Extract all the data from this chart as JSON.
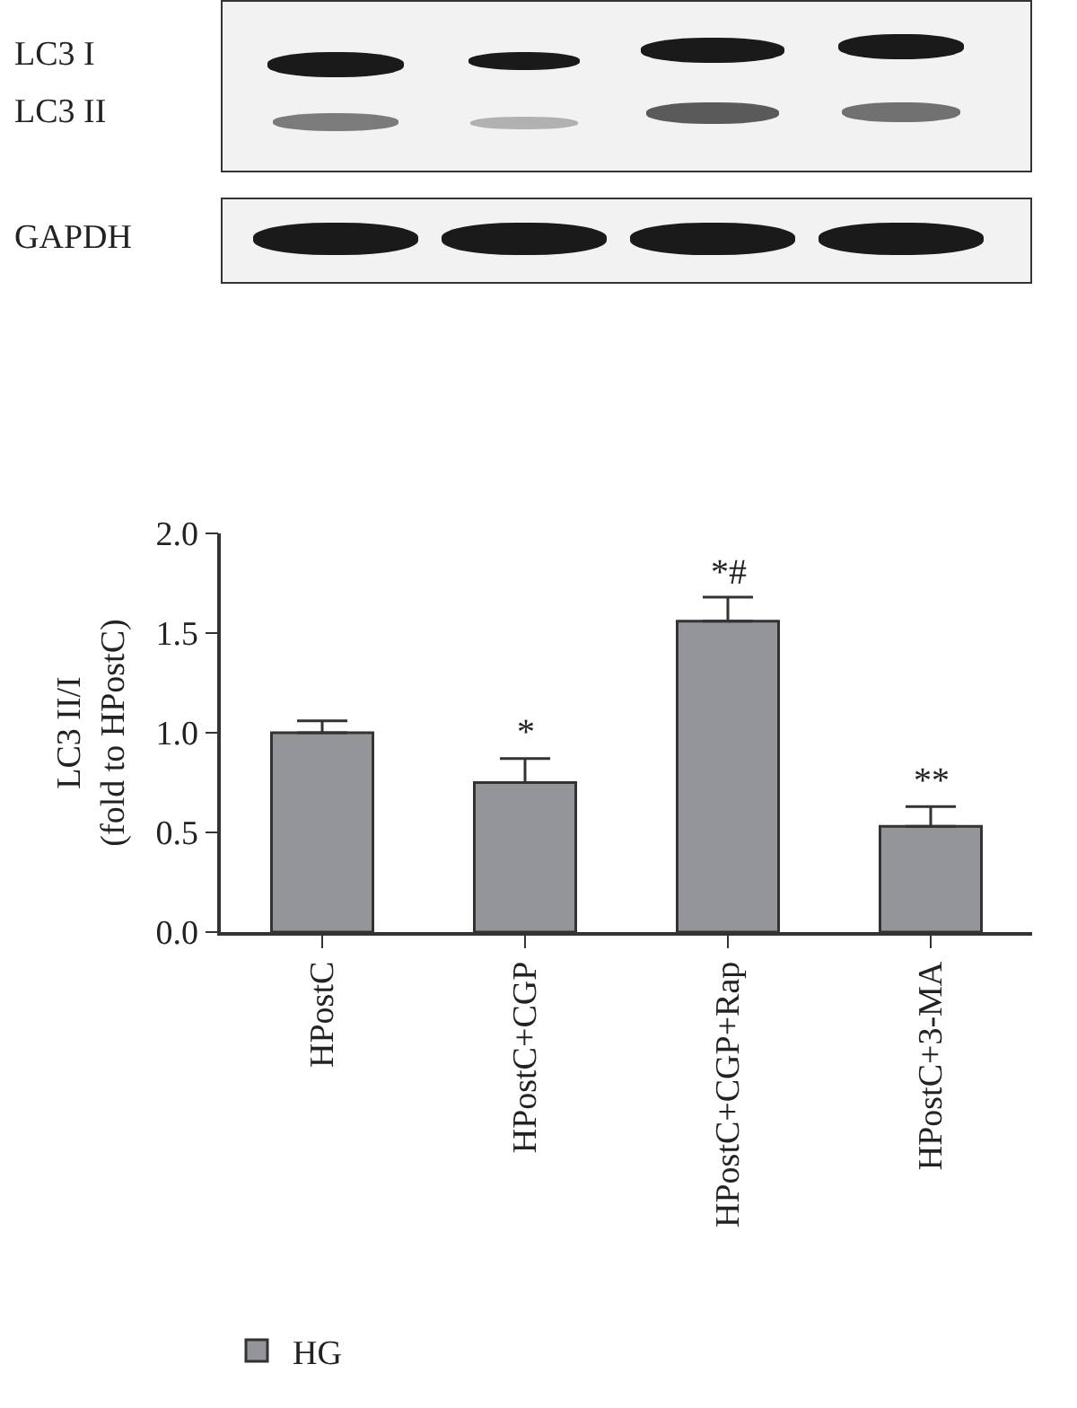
{
  "chart_data": {
    "type": "bar",
    "ylabel": "LC3 II/I\n(fold to HPostC)",
    "categories": [
      "HPostC",
      "HPostC+CGP",
      "HPostC+CGP+Rap",
      "HPostC+3-MA"
    ],
    "series": [
      {
        "name": "HG",
        "color": "#939598",
        "values": [
          1.0,
          0.75,
          1.56,
          0.53
        ],
        "errors": [
          [
            1.0,
            1.06
          ],
          [
            0.75,
            0.87
          ],
          [
            1.56,
            1.68
          ],
          [
            0.53,
            0.63
          ]
        ]
      }
    ],
    "ylim": [
      0,
      2.0
    ],
    "yticks": [
      {
        "value": 0,
        "label": "0.0"
      },
      0.5,
      {
        "value": 1,
        "label": "1.0"
      },
      1.5,
      {
        "value": 2,
        "label": "2.0"
      }
    ],
    "grid": false,
    "legend": "bottom left",
    "annotations": [
      "LC3 I",
      "LC3 II",
      "GAPDH",
      {
        "text": "*",
        "x": "HPostC+CGP",
        "y": 0.87
      },
      {
        "text": "*#",
        "x": "HPostC+CGP+Rap",
        "y": 1.68
      },
      {
        "text": "**",
        "x": "HPostC+3-MA",
        "y": 0.63
      }
    ]
  }
}
